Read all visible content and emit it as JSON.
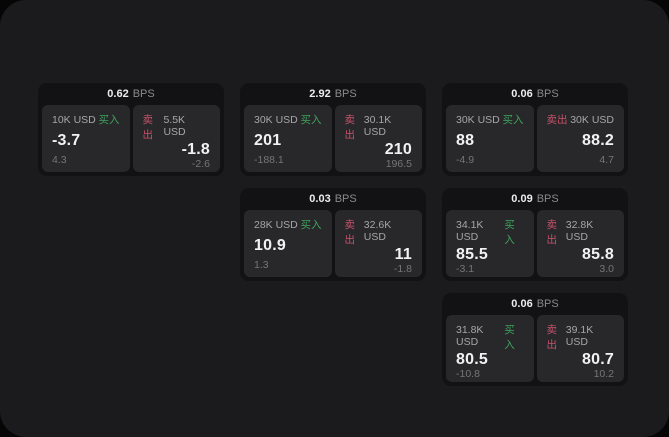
{
  "page": {
    "surface_bg": "#1b1b1d",
    "outer_bg": "#060606",
    "card_bg": "#121214",
    "panel_bg": "#28282b"
  },
  "colors": {
    "buy_green": "#3ea35c",
    "sell_red": "#c7516a"
  },
  "labels": {
    "bps_unit": "BPS",
    "buy_tag": "买入",
    "sell_tag": "卖出"
  },
  "cards": [
    {
      "bps": "0.62",
      "buy": {
        "amount": "10K USD",
        "value": "-3.7",
        "delta": "4.3"
      },
      "sell": {
        "amount": "5.5K USD",
        "value": "-1.8",
        "delta": "-2.6"
      }
    },
    {
      "bps": "2.92",
      "buy": {
        "amount": "30K USD",
        "value": "201",
        "delta": "-188.1"
      },
      "sell": {
        "amount": "30.1K USD",
        "value": "210",
        "delta": "196.5"
      }
    },
    {
      "bps": "0.06",
      "buy": {
        "amount": "30K USD",
        "value": "88",
        "delta": "-4.9"
      },
      "sell": {
        "amount": "30K USD",
        "value": "88.2",
        "delta": "4.7"
      }
    },
    {
      "bps": "0.03",
      "buy": {
        "amount": "28K USD",
        "value": "10.9",
        "delta": "1.3"
      },
      "sell": {
        "amount": "32.6K USD",
        "value": "11",
        "delta": "-1.8"
      }
    },
    {
      "bps": "0.09",
      "buy": {
        "amount": "34.1K USD",
        "value": "85.5",
        "delta": "-3.1"
      },
      "sell": {
        "amount": "32.8K USD",
        "value": "85.8",
        "delta": "3.0"
      }
    },
    {
      "bps": "0.06",
      "buy": {
        "amount": "31.8K USD",
        "value": "80.5",
        "delta": "-10.8"
      },
      "sell": {
        "amount": "39.1K USD",
        "value": "80.7",
        "delta": "10.2"
      }
    }
  ]
}
